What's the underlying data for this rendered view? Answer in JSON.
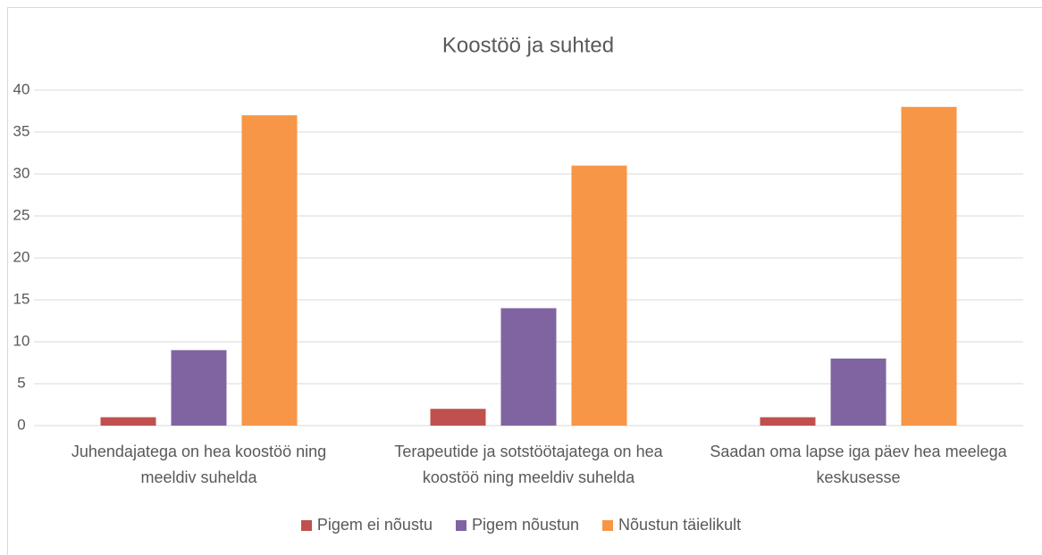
{
  "chart_data": {
    "type": "bar",
    "title": "Koostöö ja suhted",
    "categories": [
      "Juhendajatega on hea koostöö ning meeldiv suhelda",
      "Terapeutide ja sotstöötajatega on hea koostöö ning meeldiv suhelda",
      "Saadan oma lapse iga päev hea meelega keskusesse"
    ],
    "series": [
      {
        "name": "Pigem ei nõustu",
        "color": "#c0504d",
        "values": [
          1,
          2,
          1
        ]
      },
      {
        "name": "Pigem nõustun",
        "color": "#8064a2",
        "values": [
          9,
          14,
          8
        ]
      },
      {
        "name": "Nõustun täielikult",
        "color": "#f79646",
        "values": [
          37,
          31,
          38
        ]
      }
    ],
    "ylim": [
      0,
      40
    ],
    "yticks": [
      0,
      5,
      10,
      15,
      20,
      25,
      30,
      35,
      40
    ],
    "grid": true,
    "legend": "bottom"
  }
}
